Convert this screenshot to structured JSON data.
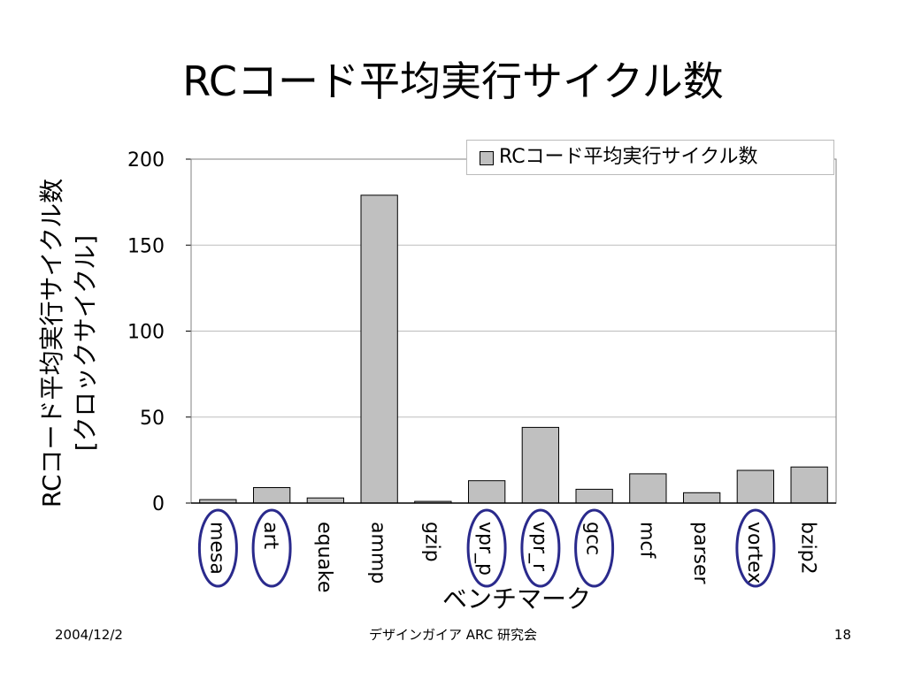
{
  "slide": {
    "title": "RCコード平均実行サイクル数",
    "footer_date": "2004/12/2",
    "footer_center": "デザインガイア ARC 研究会",
    "page_number": "18"
  },
  "chart_data": {
    "type": "bar",
    "title": "",
    "categories": [
      "mesa",
      "art",
      "equake",
      "ammp",
      "gzip",
      "vpr_p",
      "vpr_r",
      "gcc",
      "mcf",
      "parser",
      "vortex",
      "bzip2"
    ],
    "series": [
      {
        "name": "RCコード平均実行サイクル数",
        "values": [
          2,
          9,
          3,
          179,
          1,
          13,
          44,
          8,
          17,
          6,
          19,
          21
        ]
      }
    ],
    "xlabel": "ベンチマーク",
    "ylabel_line1": "RCコード平均実行サイクル数",
    "ylabel_line2": "[クロックサイクル]",
    "ylim": [
      0,
      200
    ],
    "yticks": [
      0,
      50,
      100,
      150,
      200
    ],
    "grid": true,
    "legend_position": "top-right",
    "bar_color": "#c0c0c0",
    "highlighted_categories": [
      "mesa",
      "art",
      "vpr_p",
      "vpr_r",
      "gcc",
      "vortex"
    ],
    "highlight_color": "#2a2a8c"
  }
}
